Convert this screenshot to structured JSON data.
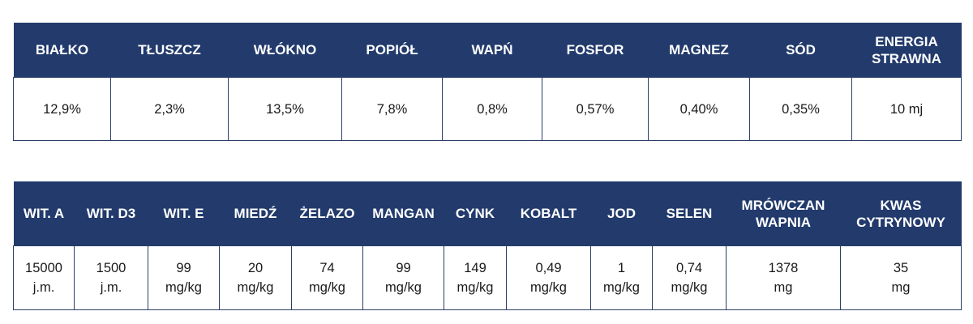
{
  "table1": {
    "headers": [
      "BIAŁKO",
      "TŁUSZCZ",
      "WŁÓKNO",
      "POPIÓŁ",
      "WAPŃ",
      "FOSFOR",
      "MAGNEZ",
      "SÓD",
      "ENERGIA\nSTRAWNA"
    ],
    "values": [
      "12,9%",
      "2,3%",
      "13,5%",
      "7,8%",
      "0,8%",
      "0,57%",
      "0,40%",
      "0,35%",
      "10 mj"
    ]
  },
  "table2": {
    "headers": [
      "WIT. A",
      "WIT. D3",
      "WIT. E",
      "MIEDŹ",
      "ŻELAZO",
      "MANGAN",
      "CYNK",
      "KOBALT",
      "JOD",
      "SELEN",
      "MRÓWCZAN\nWAPNIA",
      "KWAS\nCYTRYNOWY"
    ],
    "values": [
      "15000\nj.m.",
      "1500\nj.m.",
      "99\nmg/kg",
      "20\nmg/kg",
      "74\nmg/kg",
      "99\nmg/kg",
      "149\nmg/kg",
      "0,49\nmg/kg",
      "1\nmg/kg",
      "0,74\nmg/kg",
      "1378\nmg",
      "35\nmg"
    ]
  },
  "colors": {
    "header_bg": "#223a6c",
    "header_text": "#ffffff",
    "border": "#2b3f66"
  }
}
